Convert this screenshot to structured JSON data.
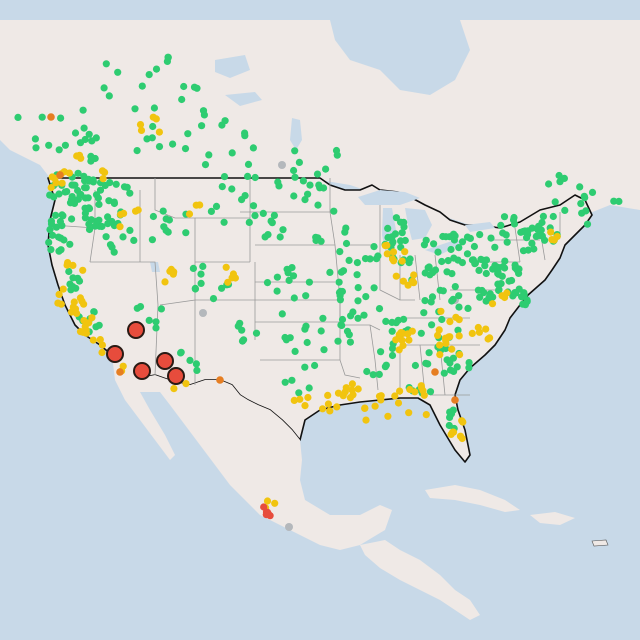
{
  "map": {
    "colors": {
      "water": "#c8d9e8",
      "land": "#efe9e6",
      "land_alt": "#f2ecea",
      "us_border": "#111111",
      "state_border": "#9a9a9a",
      "good": "#2ecc71",
      "moderate": "#f1c40f",
      "usg": "#e67e22",
      "unhealthy": "#e74c3c",
      "unknown": "#b4b8bc"
    },
    "hotspots": [
      {
        "id": "socal-1",
        "level": "unhealthy"
      },
      {
        "id": "socal-2",
        "level": "unhealthy"
      },
      {
        "id": "az-1",
        "level": "unhealthy"
      },
      {
        "id": "az-2",
        "level": "unhealthy"
      },
      {
        "id": "az-3",
        "level": "unhealthy"
      },
      {
        "id": "az-4",
        "level": "unhealthy"
      }
    ]
  }
}
